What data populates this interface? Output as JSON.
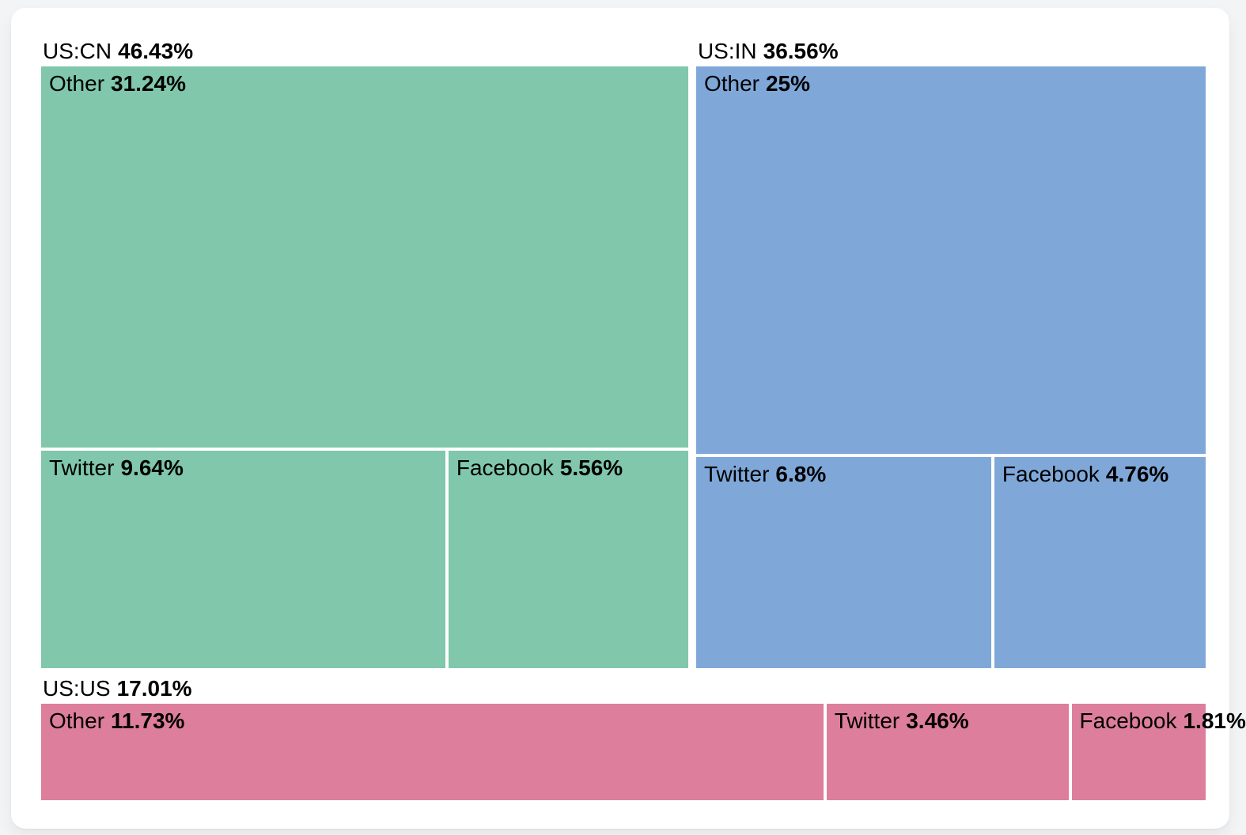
{
  "chart_data": {
    "type": "treemap",
    "title": "",
    "legend": "none",
    "groups": [
      {
        "label": "US:CN",
        "pct": "46.43%",
        "value": 46.43,
        "color": "#80c7ab",
        "children": [
          {
            "label": "Other",
            "pct": "31.24%",
            "value": 31.24
          },
          {
            "label": "Twitter",
            "pct": "9.64%",
            "value": 9.64
          },
          {
            "label": "Facebook",
            "pct": "5.56%",
            "value": 5.56
          }
        ]
      },
      {
        "label": "US:IN",
        "pct": "36.56%",
        "value": 36.56,
        "color": "#7fa8d9",
        "children": [
          {
            "label": "Other",
            "pct": "25%",
            "value": 25
          },
          {
            "label": "Twitter",
            "pct": "6.8%",
            "value": 6.8
          },
          {
            "label": "Facebook",
            "pct": "4.76%",
            "value": 4.76
          }
        ]
      },
      {
        "label": "US:US",
        "pct": "17.01%",
        "value": 17.01,
        "color": "#dd7e9c",
        "children": [
          {
            "label": "Other",
            "pct": "11.73%",
            "value": 11.73
          },
          {
            "label": "Twitter",
            "pct": "3.46%",
            "value": 3.46
          },
          {
            "label": "Facebook",
            "pct": "1.81%",
            "value": 1.81
          }
        ]
      }
    ],
    "layout_hints": {
      "top_row_group_indices": [
        0,
        1
      ],
      "bottom_row_group_indices": [
        2
      ],
      "text_color": "#000000",
      "background": "#f3f4f6",
      "card_background": "#ffffff"
    }
  }
}
